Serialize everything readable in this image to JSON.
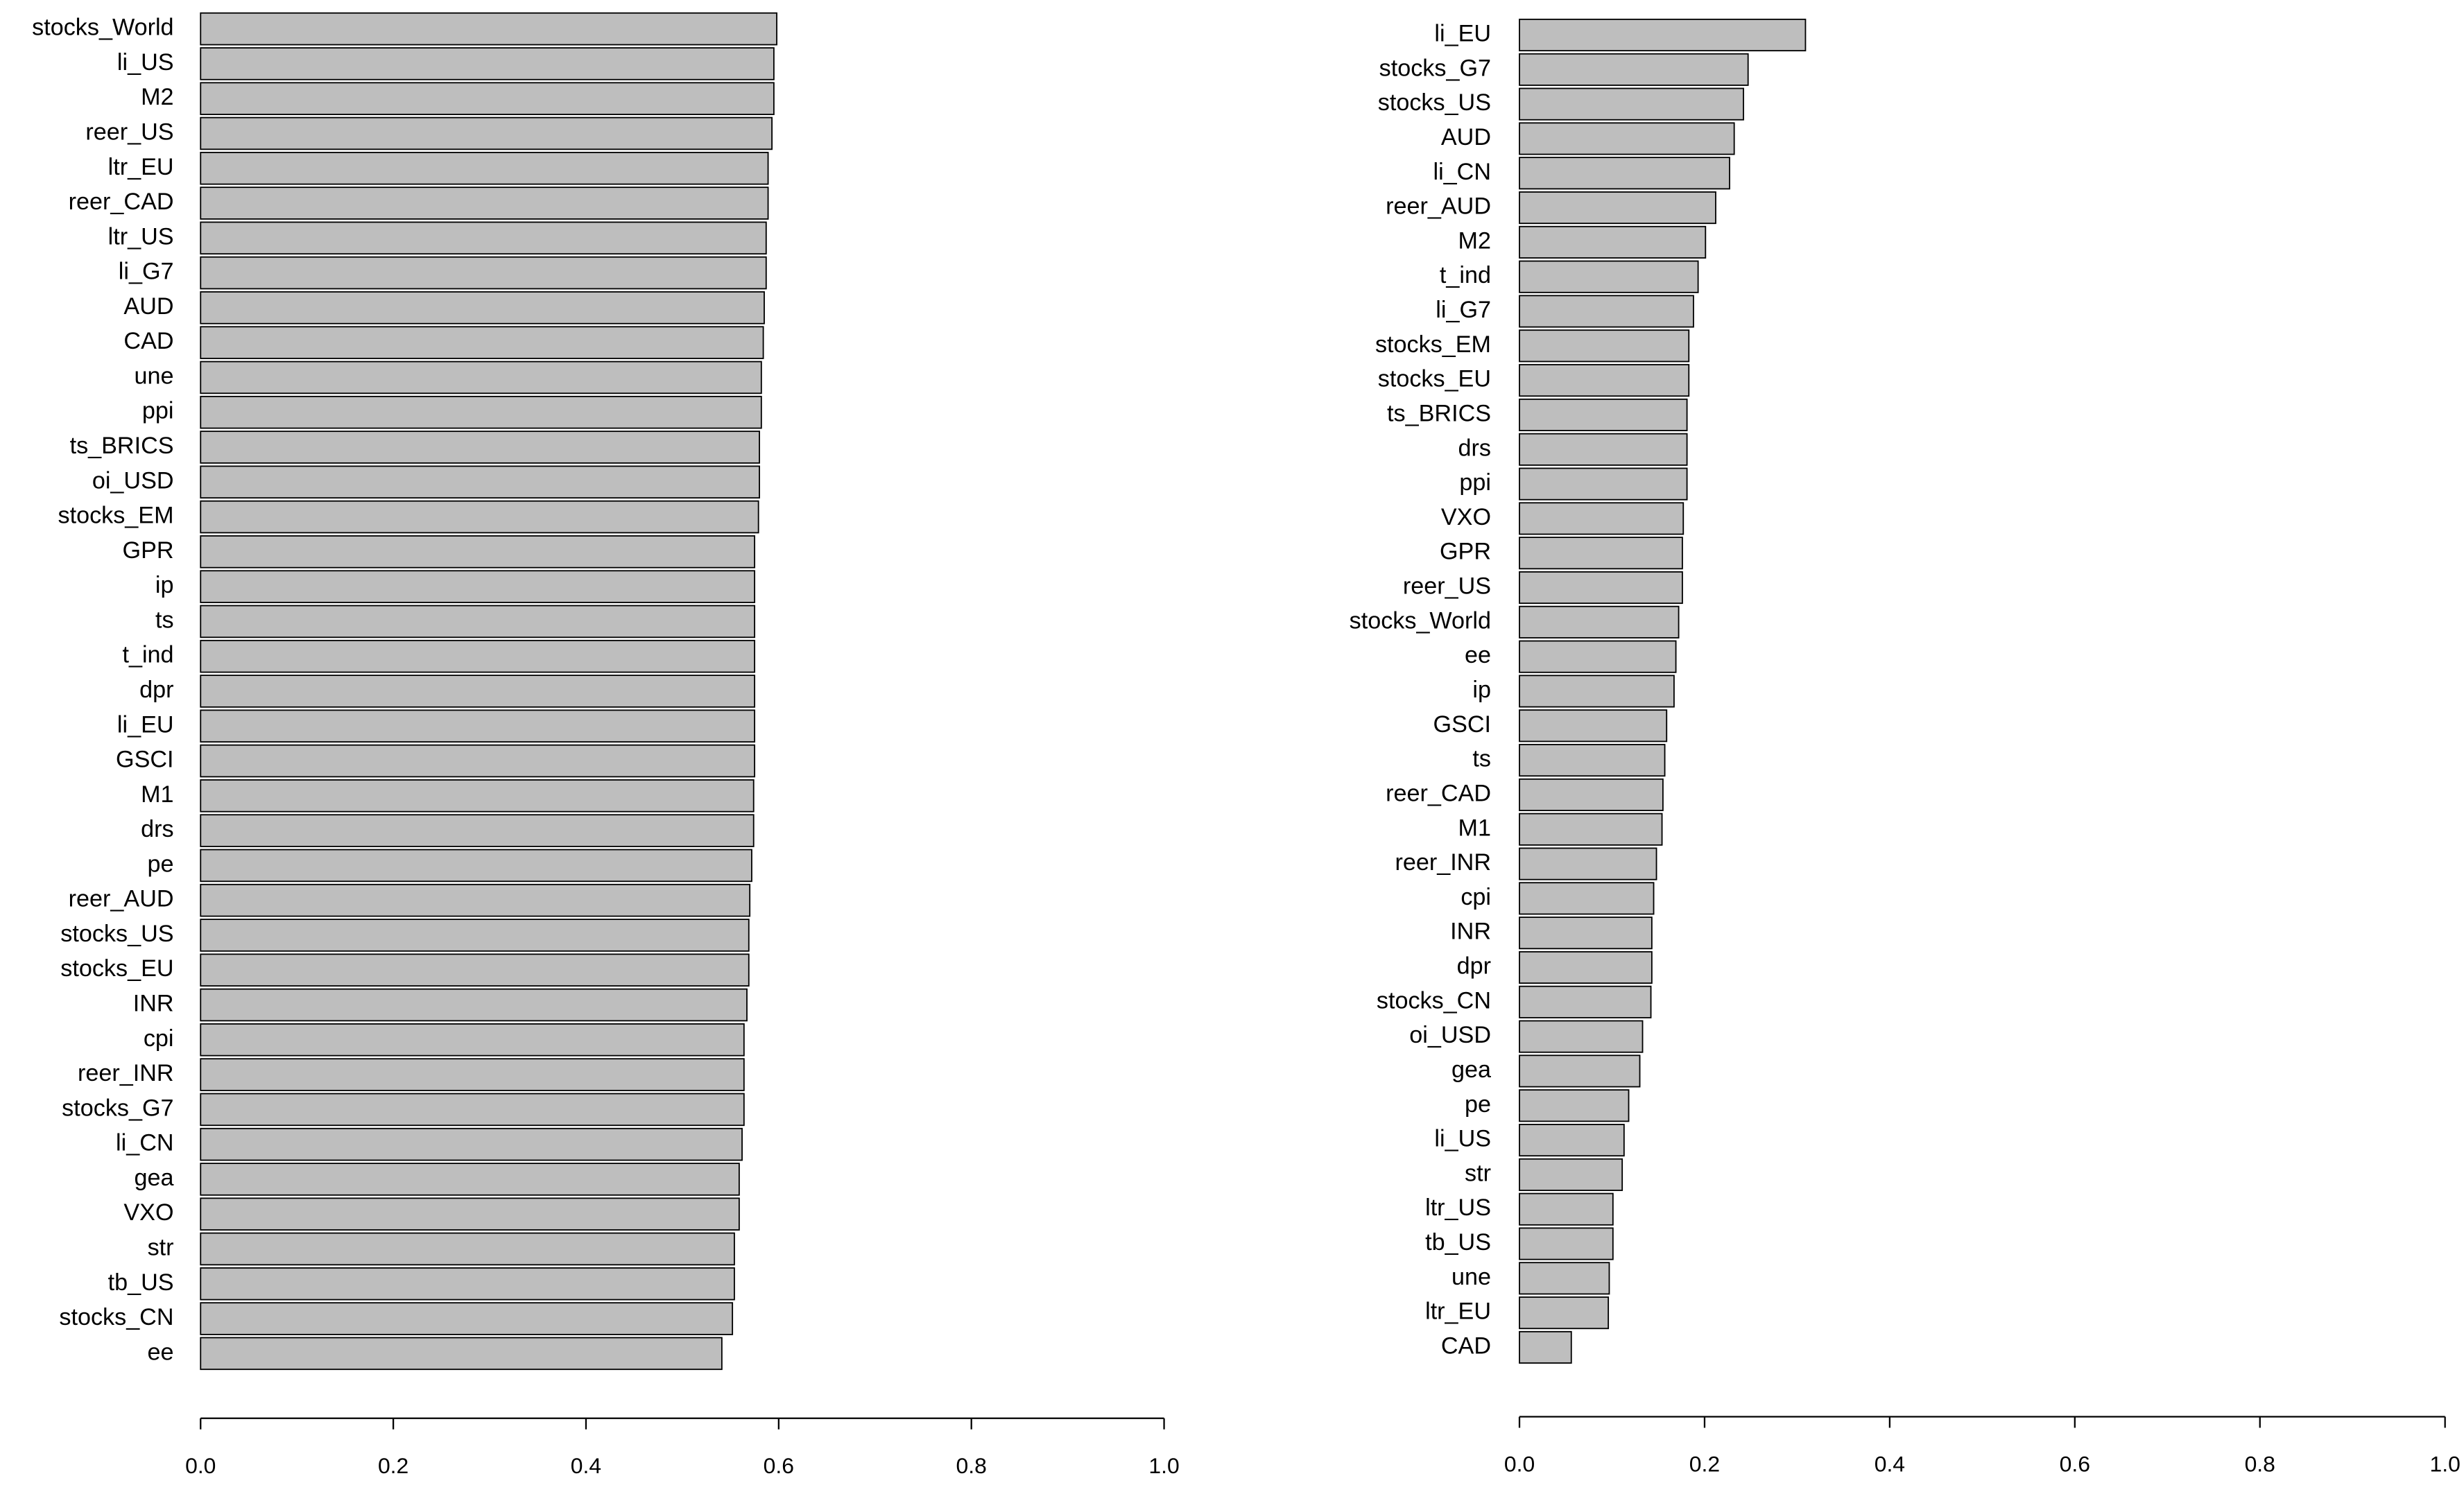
{
  "chart_data": [
    {
      "type": "bar",
      "orientation": "horizontal",
      "color": "#bebebe",
      "categories": [
        "stocks_World",
        "li_US",
        "M2",
        "reer_US",
        "ltr_EU",
        "reer_CAD",
        "ltr_US",
        "li_G7",
        "AUD",
        "CAD",
        "une",
        "ppi",
        "ts_BRICS",
        "oi_USD",
        "stocks_EM",
        "GPR",
        "ip",
        "ts",
        "t_ind",
        "dpr",
        "li_EU",
        "GSCI",
        "M1",
        "drs",
        "pe",
        "reer_AUD",
        "stocks_US",
        "stocks_EU",
        "INR",
        "cpi",
        "reer_INR",
        "stocks_G7",
        "li_CN",
        "gea",
        "VXO",
        "str",
        "tb_US",
        "stocks_CN",
        "ee"
      ],
      "values": [
        0.598,
        0.595,
        0.595,
        0.593,
        0.589,
        0.589,
        0.587,
        0.587,
        0.585,
        0.584,
        0.582,
        0.582,
        0.58,
        0.58,
        0.579,
        0.575,
        0.575,
        0.575,
        0.575,
        0.575,
        0.575,
        0.575,
        0.574,
        0.574,
        0.572,
        0.57,
        0.569,
        0.569,
        0.567,
        0.564,
        0.564,
        0.564,
        0.562,
        0.559,
        0.559,
        0.554,
        0.554,
        0.552,
        0.541
      ],
      "xlim": [
        0,
        1
      ],
      "xticks": [
        {
          "value": 0,
          "label": "0.0"
        },
        0.2,
        0.4,
        0.6,
        0.8,
        {
          "value": 1,
          "label": "1.0"
        }
      ]
    },
    {
      "type": "bar",
      "orientation": "horizontal",
      "color": "#bebebe",
      "categories": [
        "li_EU",
        "stocks_G7",
        "stocks_US",
        "AUD",
        "li_CN",
        "reer_AUD",
        "M2",
        "t_ind",
        "li_G7",
        "stocks_EM",
        "stocks_EU",
        "ts_BRICS",
        "drs",
        "ppi",
        "VXO",
        "GPR",
        "reer_US",
        "stocks_World",
        "ee",
        "ip",
        "GSCI",
        "ts",
        "reer_CAD",
        "M1",
        "reer_INR",
        "cpi",
        "INR",
        "dpr",
        "stocks_CN",
        "oi_USD",
        "gea",
        "pe",
        "li_US",
        "str",
        "ltr_US",
        "tb_US",
        "une",
        "ltr_EU",
        "CAD"
      ],
      "values": [
        0.309,
        0.247,
        0.242,
        0.232,
        0.227,
        0.212,
        0.201,
        0.193,
        0.188,
        0.183,
        0.183,
        0.181,
        0.181,
        0.181,
        0.177,
        0.176,
        0.176,
        0.172,
        0.169,
        0.167,
        0.159,
        0.157,
        0.155,
        0.154,
        0.148,
        0.145,
        0.143,
        0.143,
        0.142,
        0.133,
        0.13,
        0.118,
        0.113,
        0.111,
        0.101,
        0.101,
        0.097,
        0.096,
        0.056
      ],
      "xlim": [
        0,
        1
      ],
      "xticks": [
        {
          "value": 0,
          "label": "0.0"
        },
        0.2,
        0.4,
        0.6,
        0.8,
        {
          "value": 1,
          "label": "1.0"
        }
      ]
    }
  ]
}
